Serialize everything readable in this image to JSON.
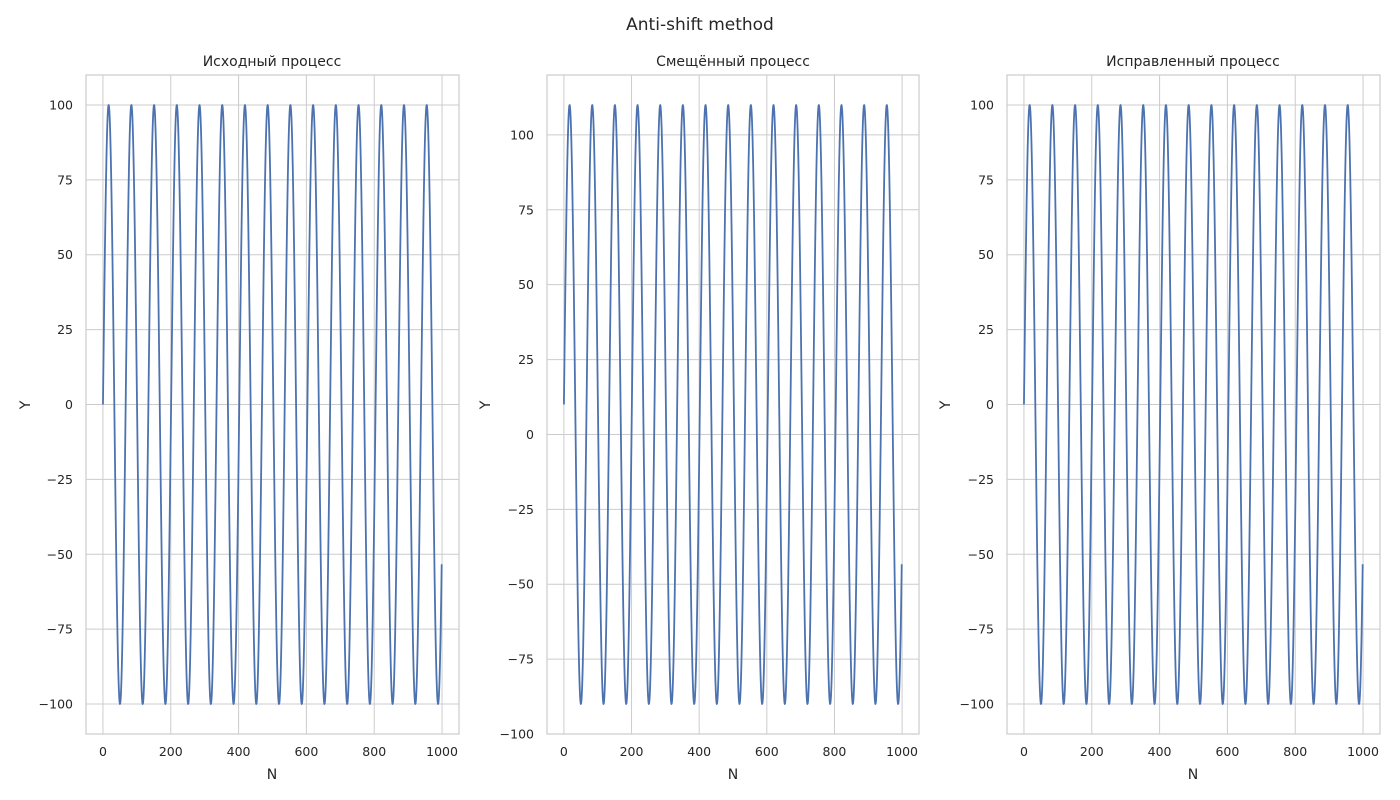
{
  "figure": {
    "suptitle": "Anti-shift method"
  },
  "chart_data": [
    {
      "type": "line",
      "title": "Исходный процесс",
      "xlabel": "N",
      "ylabel": "Y",
      "xlim": [
        -50,
        1050
      ],
      "ylim": [
        -110,
        110
      ],
      "xticks": [
        0,
        200,
        400,
        600,
        800,
        1000
      ],
      "yticks": [
        100,
        75,
        50,
        25,
        0,
        -25,
        -50,
        -75,
        -100
      ],
      "ytick_labels": [
        "100",
        "75",
        "50",
        "25",
        "0",
        "−25",
        "−50",
        "−75",
        "−100"
      ],
      "grid": true,
      "line_color": "#4c72b0",
      "series": [
        {
          "function": "offset + amplitude*sin(2*pi*x/period)",
          "amplitude": 100,
          "offset": 0,
          "period": 67,
          "x_start": 0,
          "x_end": 999,
          "points": 1000
        }
      ]
    },
    {
      "type": "line",
      "title": "Смещённый процесс",
      "xlabel": "N",
      "ylabel": "Y",
      "xlim": [
        -50,
        1050
      ],
      "ylim": [
        -100,
        120
      ],
      "xticks": [
        0,
        200,
        400,
        600,
        800,
        1000
      ],
      "yticks": [
        100,
        75,
        50,
        25,
        0,
        -25,
        -50,
        -75,
        -100
      ],
      "ytick_labels": [
        "100",
        "75",
        "50",
        "25",
        "0",
        "−25",
        "−50",
        "−75",
        "−100"
      ],
      "grid": true,
      "line_color": "#4c72b0",
      "series": [
        {
          "function": "offset + amplitude*sin(2*pi*x/period)",
          "amplitude": 100,
          "offset": 10,
          "period": 67,
          "x_start": 0,
          "x_end": 999,
          "points": 1000
        }
      ]
    },
    {
      "type": "line",
      "title": "Исправленный процесс",
      "xlabel": "N",
      "ylabel": "Y",
      "xlim": [
        -50,
        1050
      ],
      "ylim": [
        -110,
        110
      ],
      "xticks": [
        0,
        200,
        400,
        600,
        800,
        1000
      ],
      "yticks": [
        100,
        75,
        50,
        25,
        0,
        -25,
        -50,
        -75,
        -100
      ],
      "ytick_labels": [
        "100",
        "75",
        "50",
        "25",
        "0",
        "−25",
        "−50",
        "−75",
        "−100"
      ],
      "grid": true,
      "line_color": "#4c72b0",
      "series": [
        {
          "function": "offset + amplitude*sin(2*pi*x/period)",
          "amplitude": 100,
          "offset": 0,
          "period": 67,
          "x_start": 0,
          "x_end": 999,
          "points": 1000
        }
      ]
    }
  ]
}
